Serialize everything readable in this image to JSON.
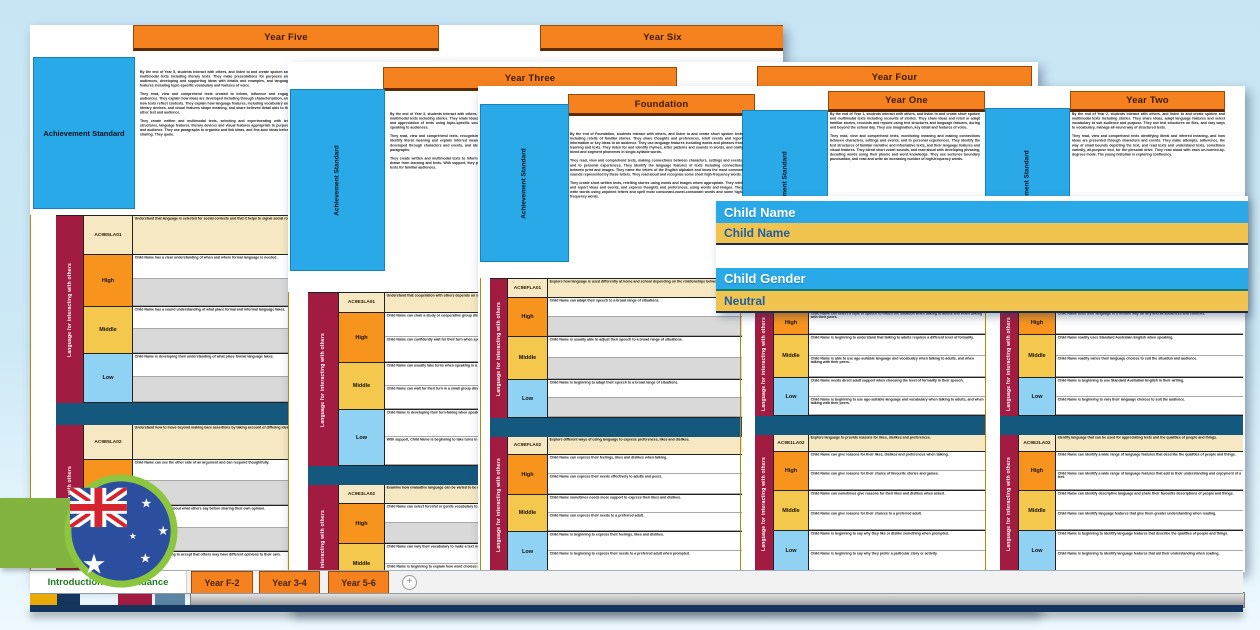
{
  "colors": {
    "header_orange": "#F5821F",
    "achievement_blue": "#29A9E8",
    "gold": "#EAAB09",
    "maroon": "#A21C41",
    "cream": "#F6E8C2",
    "high_orange": "#F7941E",
    "middle_yellow": "#F3C84D",
    "low_blue": "#8FD2F4",
    "navy": "#14587E",
    "tab_green_text": "#1e7b1e",
    "background_blue": "#cde9f6",
    "ribbon_green": "#82B43F"
  },
  "levels": [
    "High",
    "Middle",
    "Low"
  ],
  "achievement_standard_label": "Achievement Standard",
  "sheets": {
    "year56": {
      "headers": [
        "Year Five",
        "Year Six"
      ],
      "standard_paragraphs": [
        "By the end of Year 5, students interact with others, and listen to and create spoken and multimodal texts including literary texts. They make presentations for purposes and audiences, developing and supporting ideas with details and examples, and language features including topic-specific vocabulary and features of voice.",
        "They read, view and comprehend texts created to inform, influence and engage audiences. They explain how ideas are developed including through characterisation, and how texts reflect contexts. They explain how language features, including vocabulary and literary devices, and visual features shape meaning, and share believed detail aids to the other text and audience.",
        "They create written and multimodal texts, selecting and experimenting with text structures, language features, literary devices and visual features appropriate to purpose and audience. They use paragraphs to organise and link ideas, and fine-tune ideas before sharing. They quote."
      ]
    },
    "year34": {
      "headers": [
        "Year Three",
        "Year Four"
      ],
      "standard_paragraphs": [
        "By the end of Year 3, students interact with others, and listen to and create spoken and multimodal texts including stories. They relate ideas; express opinion, share preferences and appreciation of texts using topic-specific vocabulary and features of voice when speaking to audiences.",
        "They read, view and comprehend texts, recognising their purpose and audience. They identify literal meaning and explain inferred meaning. They describe how stories are developed through characters and events, and identify how texts are organised using paragraphs.",
        "They create written and multimodal texts to inform and engage audiences, using ideas drawn from learning and texts. With support, they plan, draft and edit a beginning set of texts for familiar audiences."
      ]
    },
    "foundation12": {
      "headers": [
        "Foundation",
        "Year One",
        "Year Two"
      ],
      "foundation_paragraphs": [
        "By the end of Foundation, students interact with others, and listen to and create short spoken texts including retells of familiar stories. They share thoughts and preferences, retell events and report information or key ideas to an audience. They use language features including words and phrases from learning and texts. They listen for and identify rhymes, letter patterns and sounds in words, and orally blend and segment phonemes in single-syllable words.",
        "They read, view and comprehend texts, making connections between characters, settings and events, and to personal experiences. They identify the language features of texts including connections between print and images. They name the letters of the English alphabet and know the most common sounds represented by these letters. They read aloud and recognise some short high-frequency words.",
        "They create short written texts, retelling stories using words and images where appropriate. They retell and report ideas and events, and express thoughts and preferences, using words and images. They write words using unjoined letters and spell most consonant-vowel-consonant words and some high-frequency words."
      ],
      "year_one_paragraphs": [
        "By the end of Year 1, students interact with others, and listen to and create short spoken and multimodal texts including recounts of stories. They share ideas and retell or adapt familiar stories, recounts and reports using text structures and language features, during and beyond the school day. They use imagination, key detail and features of voice.",
        "They read, view and comprehend texts, monitoring meaning and making connections between characters, settings and events, and to personal experiences. They identify the text structures of familiar narrative and informative texts, and their language features and visual features. They blend short vowel sounds, and read aloud with developing phrasing, decoding words using their phonic and word knowledge. They use sentence boundary punctuation, and read and write an increasing number of high-frequency words."
      ],
      "year_two_paragraphs": [
        "By the end of Year 2, students interact with others, and listen to and create spoken and multimodal texts including stories. They share ideas, adapt language features and select vocabulary to suit audience and purpose. They use text structures on files, and vary ways to vocabulary, manage all-round way of structured texts.",
        "They read, view and comprehend texts identifying literal and inferred meaning, and how ideas are presented through characters and events. They make attempts, adherence, the way of small bounds depicting the text, and read texts and understand texts, sometimes variedly, all-purpose tied, for the personal drive. They read aloud with each un-hurried-by-degrees mode. The young historian is exploring confluency."
      ]
    }
  },
  "child_fields": {
    "name_label": "Child Name",
    "name_value": "Child Name",
    "gender_label": "Child Gender",
    "gender_value": "Neutral"
  },
  "grids": {
    "year5": {
      "strand": "Language for interacting with others",
      "sections": [
        {
          "code": "AC9E5LA01",
          "description": "Understand that language is selected for social contexts and that it helps to signal social roles and relationships.",
          "descriptors": {
            "High": [
              "Child Name has a clear understanding of when and where formal language is needed.",
              ""
            ],
            "Middle": [
              "Child Name has a sound understanding of what place formal and informal language takes.",
              ""
            ],
            "Low": [
              "Child Name is developing their understanding of what place formal language takes.",
              ""
            ]
          }
        },
        {
          "code": "AC9E5LA02",
          "description": "Understand how to move beyond making bare assertions by taking account of differing ideas or opinions.",
          "descriptors": {
            "High": [
              "Child Name can see the other side of an argument and can respond thoughtfully.",
              ""
            ],
            "Middle": [
              "Child Name can think about what others say before sharing their own opinion.",
              ""
            ],
            "Low": [
              "Child Name is beginning to accept that others may have different opinions to their own.",
              ""
            ]
          }
        }
      ]
    },
    "year3": {
      "strand": "Language for interacting with others",
      "sections": [
        {
          "code": "AC9E3LA01",
          "description": "Understand that cooperation with others depends on shared understanding of social conventions, including turn-taking language, which vary according to the degree of formality.",
          "descriptors": {
            "High": [
              "Child Name can chair a study or cooperative group discussion.",
              "Child Name can confidently wait for their turn when speaking in group situations."
            ],
            "Middle": [
              "Child Name can usually take turns when speaking in a group.",
              "Child Name can wait for their turn in a small group discussion."
            ],
            "Low": [
              "Child Name is developing their turn-taking when speaking in a group.",
              "With support, Child Name is beginning to take turns in conversations."
            ]
          }
        },
        {
          "code": "AC9E3LA02",
          "description": "Examine how evaluative language can be varied to be more or less forceful.",
          "descriptors": {
            "High": [
              "Child Name can select forceful or gentle vocabulary to suit their purpose.",
              ""
            ],
            "Middle": [
              "Child Name can vary their vocabulary to make a text more or less forceful.",
              "Child Name is beginning to explain how word choices affect the reader."
            ],
            "Low": [
              "Child Name is beginning to notice forceful words in texts they read.",
              ""
            ]
          }
        }
      ]
    },
    "foundation": {
      "strand": "Language for interacting with others",
      "sections": [
        {
          "code": "AC9EFLA01",
          "description": "Explore how language is used differently at home and school depending on the relationships between people.",
          "descriptors": {
            "High": [
              "Child Name can adapt their speech to a broad range of situations.",
              ""
            ],
            "Middle": [
              "Child Name is usually able to adjust their speech to a broad range of situations.",
              ""
            ],
            "Low": [
              "Child Name is beginning to adapt their speech to a broad range of situations.",
              ""
            ]
          }
        },
        {
          "code": "AC9EFLA02",
          "description": "Explore different ways of using language to express preferences, likes and dislikes.",
          "descriptors": {
            "High": [
              "Child Name can express their feelings, likes and dislikes when talking.",
              "Child Name can express their needs effectively to adults and peers."
            ],
            "Middle": [
              "Child Name sometimes needs more support to express their likes and dislikes.",
              "Child Name can express their needs to a preferred adult."
            ],
            "Low": [
              "Child Name is beginning to express their feelings, likes and dislikes.",
              "Child Name is beginning to express their needs to a preferred adult when prompted."
            ]
          }
        }
      ]
    },
    "year1": {
      "strand": "Language for interacting with others",
      "sections": [
        {
          "code": "",
          "description": "",
          "descriptors": {
            "High": [
              "Child Name can select a style of speech to match the situation when talking to adults and when talking with their peers."
            ],
            "Middle": [
              "Child Name is beginning to understand that talking to adults requires a different level of formality.",
              "Child Name is able to use age-suitable language and vocabulary when talking to adults, and when talking with their peers."
            ],
            "Low": [
              "Child Name needs direct adult support when choosing the level of formality in their speech.",
              "Child Name is beginning to use age-suitable language and vocabulary when talking to adults, and when talking with their peers."
            ]
          }
        },
        {
          "code": "AC9E1LA02",
          "description": "Explore language to provide reasons for likes, dislikes and preferences.",
          "descriptors": {
            "High": [
              "Child Name can give reasons for their likes, dislikes and preferences when talking.",
              "Child Name can give reasons for their choice of favourite stories and games."
            ],
            "Middle": [
              "Child Name can sometimes give reasons for their likes and dislikes when asked.",
              "Child Name can give reasons for their choices to a preferred adult."
            ],
            "Low": [
              "Child Name is beginning to say why they like or dislike something when prompted.",
              "Child Name is beginning to say why they prefer a particular story or activity."
            ]
          }
        }
      ]
    },
    "year2": {
      "strand": "Language for interacting with others",
      "sections": [
        {
          "code": "",
          "description": "",
          "descriptors": {
            "High": [
              "Child Name uses their language in a flexible way for any and all audiences and contexts."
            ],
            "Middle": [
              "Child Name readily uses Standard Australian English when speaking.",
              "Child Name readily varies their language choices to suit the situation and audience."
            ],
            "Low": [
              "Child Name is beginning to use Standard Australian English in their writing.",
              "Child Name is beginning to vary their language choices to suit the audience."
            ]
          }
        },
        {
          "code": "AC9E2LA02",
          "description": "Identify language that can be used for appreciating texts and the qualities of people and things.",
          "descriptors": {
            "High": [
              "Child Name can identify a wide range of language features that describe the qualities of people and things.",
              "Child Name can identify a wide range of language features that add to their understanding and enjoyment of a text."
            ],
            "Middle": [
              "Child Name can identify descriptive language and share their favourite descriptions of people and things.",
              "Child Name can identify language features that give them greater understanding when reading."
            ],
            "Low": [
              "Child Name is beginning to identify language features that describe the qualities of people and things.",
              "Child Name is beginning to identify language features that aid their understanding when reading."
            ]
          }
        }
      ]
    }
  },
  "tabs": {
    "items": [
      "Introduction and Guidance",
      "Year F-2",
      "Year 3-4",
      "Year 5-6"
    ],
    "add_sheet_label": "+"
  }
}
